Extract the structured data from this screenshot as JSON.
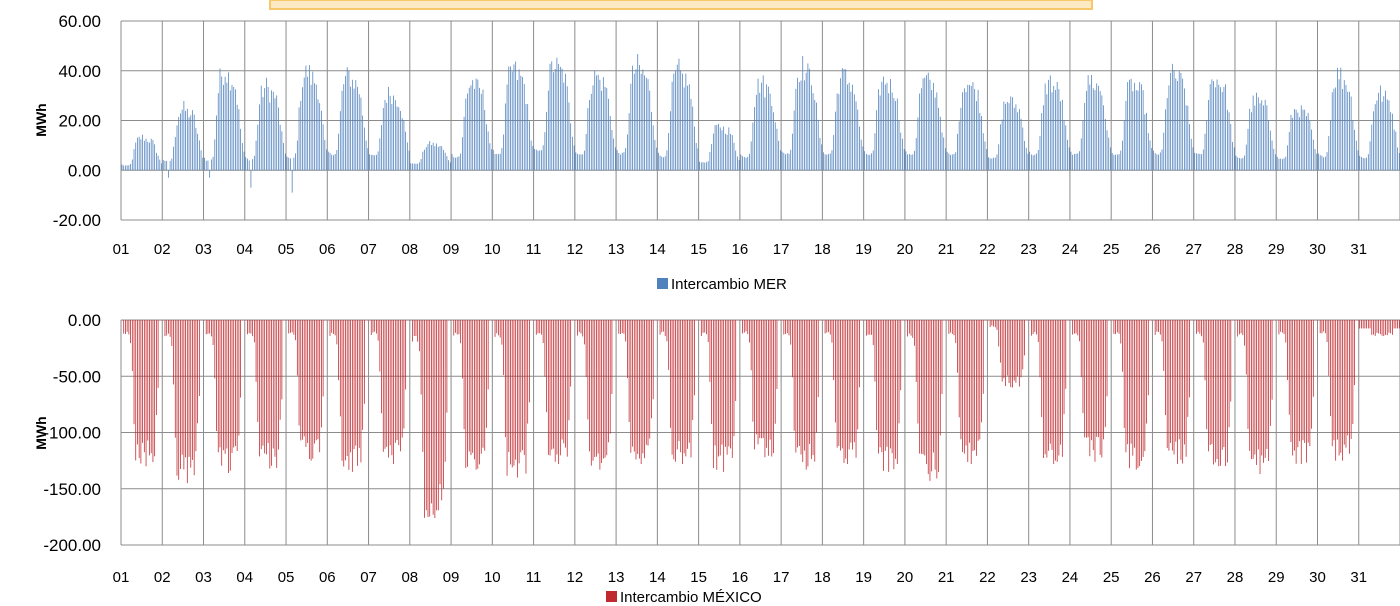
{
  "chart_data": [
    {
      "type": "bar",
      "series": [
        {
          "name": "Intercambio MER",
          "color": "#4f81bd"
        }
      ],
      "ylabel": "MWh",
      "ylim": [
        -20,
        60
      ],
      "yticks": [
        "60.00",
        "40.00",
        "20.00",
        "0.00",
        "-20.00"
      ],
      "categories": [
        "01",
        "02",
        "03",
        "04",
        "05",
        "06",
        "07",
        "08",
        "09",
        "10",
        "11",
        "12",
        "13",
        "14",
        "15",
        "16",
        "17",
        "18",
        "19",
        "20",
        "21",
        "22",
        "23",
        "24",
        "25",
        "26",
        "27",
        "28",
        "29",
        "30",
        "31"
      ],
      "grid": true,
      "legend": "bottom",
      "day_profiles": [
        {
          "day": "01",
          "min": 1,
          "peak": 15,
          "neg": 0
        },
        {
          "day": "02",
          "min": 2,
          "peak": 28,
          "neg": -3
        },
        {
          "day": "03",
          "min": 1,
          "peak": 46,
          "neg": -3
        },
        {
          "day": "04",
          "min": 2,
          "peak": 38,
          "neg": -7
        },
        {
          "day": "05",
          "min": 2,
          "peak": 45,
          "neg": -9
        },
        {
          "day": "06",
          "min": 4,
          "peak": 43,
          "neg": 0
        },
        {
          "day": "07",
          "min": 4,
          "peak": 35,
          "neg": 0
        },
        {
          "day": "08",
          "min": 2,
          "peak": 12,
          "neg": 0
        },
        {
          "day": "09",
          "min": 3,
          "peak": 40,
          "neg": 0
        },
        {
          "day": "10",
          "min": 4,
          "peak": 46,
          "neg": 0
        },
        {
          "day": "11",
          "min": 5,
          "peak": 48,
          "neg": 0
        },
        {
          "day": "12",
          "min": 4,
          "peak": 43,
          "neg": 0
        },
        {
          "day": "13",
          "min": 4,
          "peak": 47,
          "neg": 0
        },
        {
          "day": "14",
          "min": 3,
          "peak": 45,
          "neg": 0
        },
        {
          "day": "15",
          "min": 2,
          "peak": 20,
          "neg": 0
        },
        {
          "day": "16",
          "min": 3,
          "peak": 40,
          "neg": 0
        },
        {
          "day": "17",
          "min": 4,
          "peak": 47,
          "neg": 0
        },
        {
          "day": "18",
          "min": 4,
          "peak": 43,
          "neg": 0
        },
        {
          "day": "19",
          "min": 4,
          "peak": 41,
          "neg": 0
        },
        {
          "day": "20",
          "min": 4,
          "peak": 41,
          "neg": 0
        },
        {
          "day": "21",
          "min": 4,
          "peak": 40,
          "neg": 0
        },
        {
          "day": "22",
          "min": 3,
          "peak": 32,
          "neg": 0
        },
        {
          "day": "23",
          "min": 4,
          "peak": 40,
          "neg": 0
        },
        {
          "day": "24",
          "min": 4,
          "peak": 41,
          "neg": 0
        },
        {
          "day": "25",
          "min": 4,
          "peak": 39,
          "neg": 0
        },
        {
          "day": "26",
          "min": 4,
          "peak": 44,
          "neg": 0
        },
        {
          "day": "27",
          "min": 4,
          "peak": 42,
          "neg": 0
        },
        {
          "day": "28",
          "min": 3,
          "peak": 32,
          "neg": 0
        },
        {
          "day": "29",
          "min": 3,
          "peak": 28,
          "neg": 0
        },
        {
          "day": "30",
          "min": 3,
          "peak": 44,
          "neg": 0
        },
        {
          "day": "31",
          "min": 3,
          "peak": 35,
          "neg": 0
        }
      ]
    },
    {
      "type": "bar",
      "series": [
        {
          "name": "Intercambio MÉXICO",
          "color": "#c0292e"
        }
      ],
      "ylabel": "MWh",
      "ylim": [
        -200,
        0
      ],
      "yticks": [
        "0.00",
        "-50.00",
        "-100.00",
        "-150.00",
        "-200.00"
      ],
      "categories": [
        "01",
        "02",
        "03",
        "04",
        "05",
        "06",
        "07",
        "08",
        "09",
        "10",
        "11",
        "12",
        "13",
        "14",
        "15",
        "16",
        "17",
        "18",
        "19",
        "20",
        "21",
        "22",
        "23",
        "24",
        "25",
        "26",
        "27",
        "28",
        "29",
        "30",
        "31"
      ],
      "grid": true,
      "legend": "bottom",
      "day_profiles": [
        {
          "day": "01",
          "trough": -130,
          "active": true
        },
        {
          "day": "02",
          "trough": -145,
          "active": true
        },
        {
          "day": "03",
          "trough": -136,
          "active": true
        },
        {
          "day": "04",
          "trough": -132,
          "active": true
        },
        {
          "day": "05",
          "trough": -125,
          "active": true
        },
        {
          "day": "06",
          "trough": -135,
          "active": true
        },
        {
          "day": "07",
          "trough": -128,
          "active": true
        },
        {
          "day": "08",
          "trough": -176,
          "active": true
        },
        {
          "day": "09",
          "trough": -133,
          "active": true
        },
        {
          "day": "10",
          "trough": -140,
          "active": true
        },
        {
          "day": "11",
          "trough": -128,
          "active": true
        },
        {
          "day": "12",
          "trough": -133,
          "active": true
        },
        {
          "day": "13",
          "trough": -128,
          "active": true
        },
        {
          "day": "14",
          "trough": -128,
          "active": true
        },
        {
          "day": "15",
          "trough": -135,
          "active": true
        },
        {
          "day": "16",
          "trough": -122,
          "active": true
        },
        {
          "day": "17",
          "trough": -133,
          "active": true
        },
        {
          "day": "18",
          "trough": -128,
          "active": true
        },
        {
          "day": "19",
          "trough": -135,
          "active": true
        },
        {
          "day": "20",
          "trough": -143,
          "active": true
        },
        {
          "day": "21",
          "trough": -128,
          "active": true
        },
        {
          "day": "22",
          "trough": -60,
          "active": true
        },
        {
          "day": "23",
          "trough": -128,
          "active": true
        },
        {
          "day": "24",
          "trough": -126,
          "active": true
        },
        {
          "day": "25",
          "trough": -133,
          "active": true
        },
        {
          "day": "26",
          "trough": -128,
          "active": true
        },
        {
          "day": "27",
          "trough": -130,
          "active": true
        },
        {
          "day": "28",
          "trough": -137,
          "active": true
        },
        {
          "day": "29",
          "trough": -128,
          "active": true
        },
        {
          "day": "30",
          "trough": -125,
          "active": true
        },
        {
          "day": "31",
          "trough": -15,
          "active": true
        }
      ]
    }
  ],
  "banner_color": "#f7c86a"
}
